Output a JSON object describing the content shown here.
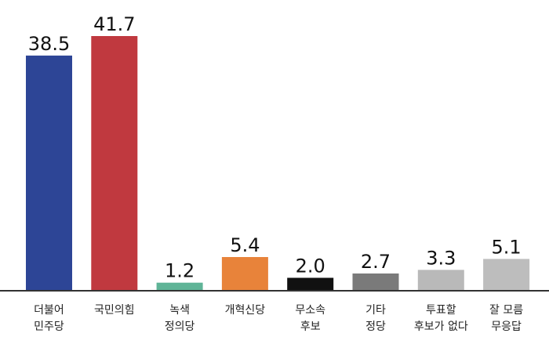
{
  "chart_data": {
    "type": "bar",
    "title": "",
    "xlabel": "",
    "ylabel": "",
    "ylim": [
      0,
      41.7
    ],
    "grid": false,
    "legend": "none",
    "categories": [
      [
        "더불어",
        "민주당"
      ],
      [
        "국민의힘"
      ],
      [
        "녹색",
        "정의당"
      ],
      [
        "개혁신당"
      ],
      [
        "무소속",
        "후보"
      ],
      [
        "기타",
        "정당"
      ],
      [
        "투표할",
        "후보가 없다"
      ],
      [
        "잘 모름",
        "무응답"
      ]
    ],
    "values": [
      38.5,
      41.7,
      1.2,
      5.4,
      2.0,
      2.7,
      3.3,
      5.1
    ],
    "value_labels": [
      "38.5",
      "41.7",
      "1.2",
      "5.4",
      "2.0",
      "2.7",
      "3.3",
      "5.1"
    ],
    "colors": [
      "#2d4596",
      "#c0393f",
      "#5fb497",
      "#e8833a",
      "#111111",
      "#7a7a7a",
      "#b9b9b9",
      "#bdbdbd"
    ]
  }
}
